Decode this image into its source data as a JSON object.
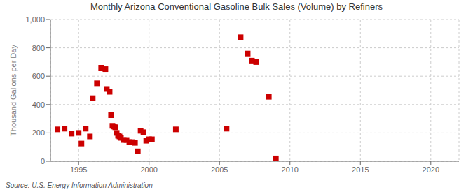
{
  "chart_data": {
    "type": "scatter",
    "title": "Monthly Arizona Conventional Gasoline Bulk Sales (Volume) by Refiners",
    "ylabel": "Thousand Gallons per Day",
    "annotation": "Source: U.S. Energy Information Administration",
    "x": [
      1993.5,
      1994.0,
      1994.5,
      1995.0,
      1995.2,
      1995.5,
      1995.8,
      1996.0,
      1996.3,
      1996.6,
      1996.9,
      1997.0,
      1997.2,
      1997.3,
      1997.4,
      1997.5,
      1997.6,
      1997.7,
      1997.8,
      1997.9,
      1998.0,
      1998.2,
      1998.4,
      1998.6,
      1998.8,
      1999.0,
      1999.2,
      1999.4,
      1999.6,
      1999.8,
      2000.0,
      2000.2,
      2001.9,
      2005.5,
      2006.5,
      2007.0,
      2007.3,
      2007.6,
      2008.5,
      2009.0
    ],
    "values": [
      225,
      230,
      195,
      200,
      125,
      230,
      175,
      445,
      550,
      660,
      650,
      510,
      490,
      325,
      250,
      245,
      240,
      200,
      180,
      175,
      165,
      150,
      150,
      135,
      135,
      130,
      70,
      215,
      205,
      145,
      155,
      155,
      225,
      230,
      875,
      760,
      710,
      700,
      455,
      20
    ],
    "color": "#cc0000",
    "marker": "square",
    "xlim": [
      1993,
      2022
    ],
    "ylim": [
      0,
      1000
    ],
    "xticks": [
      1995,
      2000,
      2005,
      2010,
      2015,
      2020
    ],
    "yticks": [
      0,
      200,
      400,
      600,
      800,
      {
        "value": 1000,
        "label": "1,000"
      }
    ],
    "grid": true
  }
}
